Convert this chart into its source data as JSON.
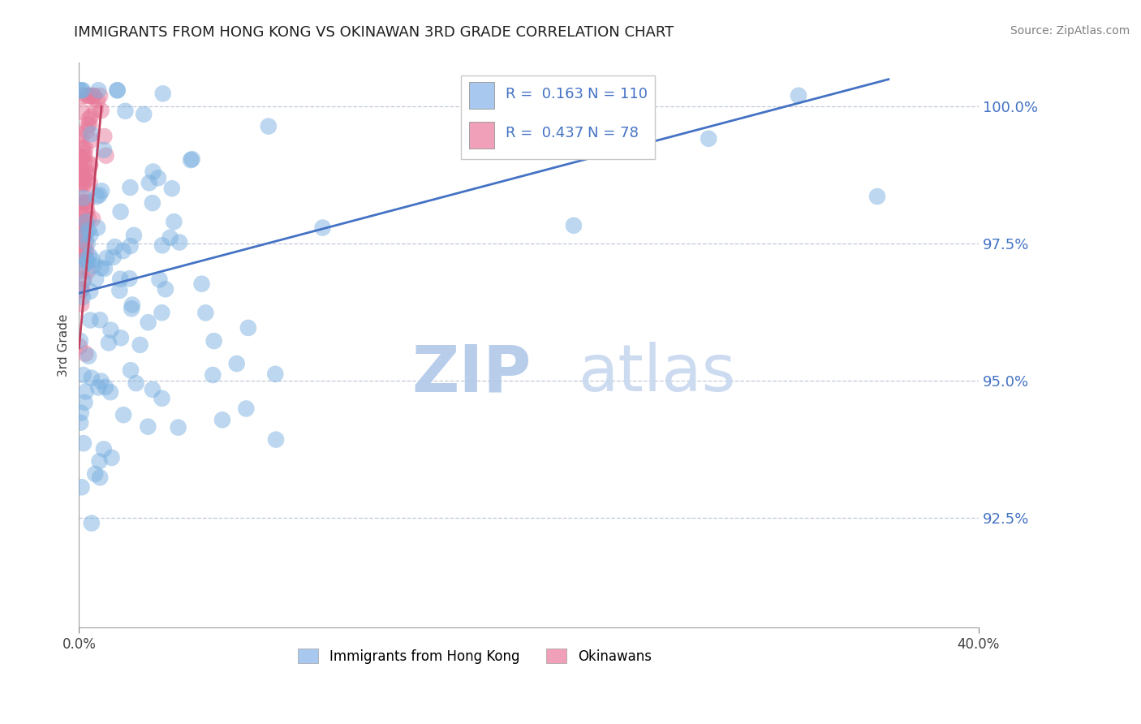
{
  "title": "IMMIGRANTS FROM HONG KONG VS OKINAWAN 3RD GRADE CORRELATION CHART",
  "source_text": "Source: ZipAtlas.com",
  "ylabel": "3rd Grade",
  "ytick_values": [
    1.0,
    0.975,
    0.95,
    0.925
  ],
  "xlim": [
    0.0,
    0.4
  ],
  "ylim": [
    0.905,
    1.008
  ],
  "legend_labels": [
    "Immigrants from Hong Kong",
    "Okinawans"
  ],
  "legend_R": [
    0.163,
    0.437
  ],
  "legend_N": [
    110,
    78
  ],
  "legend_colors": [
    "#a8c8f0",
    "#f0a0b8"
  ],
  "scatter_blue_color": "#7ab0e0",
  "scatter_pink_color": "#e87a9a",
  "trendline_blue_color": "#4472c4",
  "trendline_pink_color": "#c04060",
  "background_color": "#ffffff",
  "grid_color": "#c0c8d8",
  "title_fontsize": 13,
  "axis_label_color": "#404040",
  "ytick_color": "#4472c4",
  "xtick_labels": [
    "0.0%",
    "40.0%"
  ],
  "xtick_positions": [
    0.0,
    0.4
  ],
  "watermark_zip": "ZIP",
  "watermark_atlas": "atlas",
  "watermark_color_zip": "#b0c8e8",
  "watermark_color_atlas": "#c8d8f0"
}
